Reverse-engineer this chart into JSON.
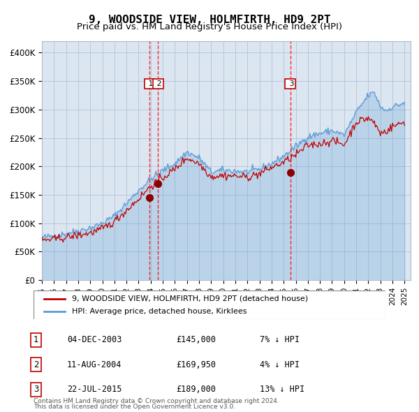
{
  "title": "9, WOODSIDE VIEW, HOLMFIRTH, HD9 2PT",
  "subtitle": "Price paid vs. HM Land Registry's House Price Index (HPI)",
  "legend_line1": "9, WOODSIDE VIEW, HOLMFIRTH, HD9 2PT (detached house)",
  "legend_line2": "HPI: Average price, detached house, Kirklees",
  "footer1": "Contains HM Land Registry data © Crown copyright and database right 2024.",
  "footer2": "This data is licensed under the Open Government Licence v3.0.",
  "transactions": [
    {
      "id": 1,
      "date": "04-DEC-2003",
      "price": 145000,
      "note": "7% ↓ HPI",
      "x_year": 2003.92
    },
    {
      "id": 2,
      "date": "11-AUG-2004",
      "price": 169950,
      "note": "4% ↓ HPI",
      "x_year": 2004.61
    },
    {
      "id": 3,
      "date": "22-JUL-2015",
      "price": 189000,
      "note": "13% ↓ HPI",
      "x_year": 2015.55
    }
  ],
  "vlines_x": [
    2003.97,
    2015.55
  ],
  "hpi_color": "#5b9bd5",
  "price_color": "#c00000",
  "dot_color": "#8b0000",
  "vline_color": "#ff0000",
  "bg_color": "#dce6f1",
  "plot_bg": "#ffffff",
  "ylim": [
    0,
    420000
  ],
  "xlim_start": 1995.0,
  "xlim_end": 2025.5,
  "yticks": [
    0,
    50000,
    100000,
    150000,
    200000,
    250000,
    300000,
    350000,
    400000
  ],
  "ytick_labels": [
    "£0",
    "£50K",
    "£100K",
    "£150K",
    "£200K",
    "£250K",
    "£300K",
    "£350K",
    "£400K"
  ],
  "xticks": [
    1995,
    1996,
    1997,
    1998,
    1999,
    2000,
    2001,
    2002,
    2003,
    2004,
    2005,
    2006,
    2007,
    2008,
    2009,
    2010,
    2011,
    2012,
    2013,
    2014,
    2015,
    2016,
    2017,
    2018,
    2019,
    2020,
    2021,
    2022,
    2023,
    2024,
    2025
  ]
}
